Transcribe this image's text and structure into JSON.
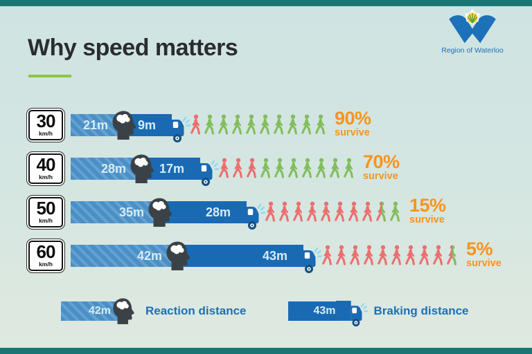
{
  "page": {
    "title": "Why speed matters"
  },
  "logo": {
    "org": "Region of Waterloo"
  },
  "rows": [
    {
      "speed": "30",
      "unit": "km/h",
      "reaction_m": 21,
      "reaction_label": "21m",
      "braking_m": 9,
      "braking_label": "9m",
      "percent": "90%",
      "survive": "survive",
      "people": {
        "red": 1,
        "half": 0,
        "green": 9
      }
    },
    {
      "speed": "40",
      "unit": "km/h",
      "reaction_m": 28,
      "reaction_label": "28m",
      "braking_m": 17,
      "braking_label": "17m",
      "percent": "70%",
      "survive": "survive",
      "people": {
        "red": 3,
        "half": 0,
        "green": 7
      }
    },
    {
      "speed": "50",
      "unit": "km/h",
      "reaction_m": 35,
      "reaction_label": "35m",
      "braking_m": 28,
      "braking_label": "28m",
      "percent": "15%",
      "survive": "survive",
      "people": {
        "red": 8,
        "half": 1,
        "green": 1
      }
    },
    {
      "speed": "60",
      "unit": "km/h",
      "reaction_m": 42,
      "reaction_label": "42m",
      "braking_m": 43,
      "braking_label": "43m",
      "percent": "5%",
      "survive": "survive",
      "people": {
        "red": 9,
        "half": 1,
        "green": 0
      }
    }
  ],
  "legend": {
    "reaction_value": "42m",
    "reaction_label": "Reaction distance",
    "braking_value": "43m",
    "braking_label": "Braking distance"
  },
  "colors": {
    "accent_green": "#8dc63f",
    "stat_orange": "#f7941e",
    "reaction_blue": "#4b8fc6",
    "braking_blue": "#1a6ab3",
    "person_red": "#ec6e6e",
    "person_green": "#82bd5c",
    "edge_teal": "#1a7674",
    "legend_text_blue": "#1f6fb4",
    "background": "#d4e5e2"
  },
  "chart_data": {
    "type": "bar",
    "title": "Why speed matters",
    "categories": [
      "30 km/h",
      "40 km/h",
      "50 km/h",
      "60 km/h"
    ],
    "series": [
      {
        "name": "Reaction distance (m)",
        "values": [
          21,
          28,
          35,
          42
        ]
      },
      {
        "name": "Braking distance (m)",
        "values": [
          9,
          17,
          28,
          43
        ]
      },
      {
        "name": "Pedestrians surviving (%)",
        "values": [
          90,
          70,
          15,
          5
        ]
      }
    ],
    "notes": "Pictograph: 10 pedestrian icons per speed; green icons survive, red icons do not. Partial icons show fractions (1.5 of 10 at 50 km/h, 0.5 of 10 at 60 km/h)."
  }
}
